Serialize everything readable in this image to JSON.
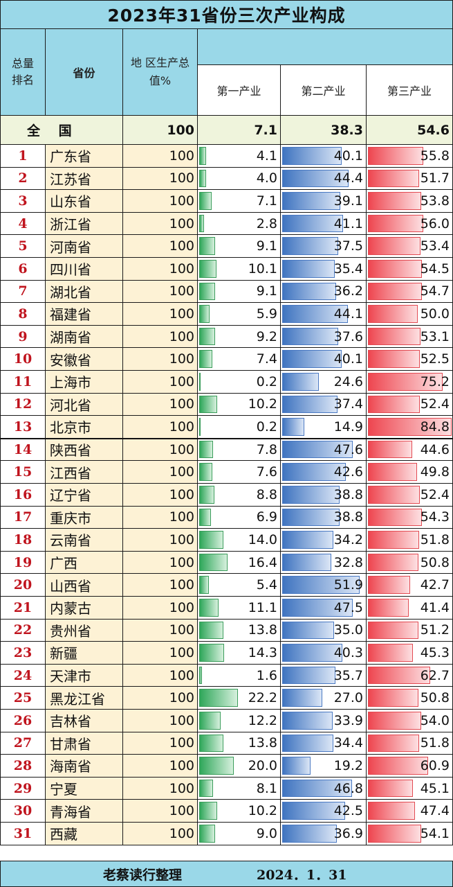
{
  "title": "2023年31省份三次产业构成",
  "headers": {
    "rank": "总量排名",
    "province": "省份",
    "gdp": "地 区生产总值%",
    "primary": "第一产业",
    "secondary": "第二产业",
    "tertiary": "第三产业"
  },
  "national": {
    "label": "全 国",
    "gdp": "100",
    "primary": "7.1",
    "secondary": "38.3",
    "tertiary": "54.6"
  },
  "chart_data": {
    "type": "table",
    "title": "2023年31省份三次产业构成",
    "columns": [
      "总量排名",
      "省份",
      "地 区生产总值%",
      "第一产业",
      "第二产业",
      "第三产业"
    ],
    "rows": [
      {
        "rank": "1",
        "province": "广东省",
        "gdp": "100",
        "primary": "4.1",
        "secondary": "40.1",
        "tertiary": "55.8"
      },
      {
        "rank": "2",
        "province": "江苏省",
        "gdp": "100",
        "primary": "4.0",
        "secondary": "44.4",
        "tertiary": "51.7"
      },
      {
        "rank": "3",
        "province": "山东省",
        "gdp": "100",
        "primary": "7.1",
        "secondary": "39.1",
        "tertiary": "53.8"
      },
      {
        "rank": "4",
        "province": "浙江省",
        "gdp": "100",
        "primary": "2.8",
        "secondary": "41.1",
        "tertiary": "56.0"
      },
      {
        "rank": "5",
        "province": "河南省",
        "gdp": "100",
        "primary": "9.1",
        "secondary": "37.5",
        "tertiary": "53.4"
      },
      {
        "rank": "6",
        "province": "四川省",
        "gdp": "100",
        "primary": "10.1",
        "secondary": "35.4",
        "tertiary": "54.5"
      },
      {
        "rank": "7",
        "province": "湖北省",
        "gdp": "100",
        "primary": "9.1",
        "secondary": "36.2",
        "tertiary": "54.7"
      },
      {
        "rank": "8",
        "province": "福建省",
        "gdp": "100",
        "primary": "5.9",
        "secondary": "44.1",
        "tertiary": "50.0"
      },
      {
        "rank": "9",
        "province": "湖南省",
        "gdp": "100",
        "primary": "9.2",
        "secondary": "37.6",
        "tertiary": "53.1"
      },
      {
        "rank": "10",
        "province": "安徽省",
        "gdp": "100",
        "primary": "7.4",
        "secondary": "40.1",
        "tertiary": "52.5"
      },
      {
        "rank": "11",
        "province": "上海市",
        "gdp": "100",
        "primary": "0.2",
        "secondary": "24.6",
        "tertiary": "75.2"
      },
      {
        "rank": "12",
        "province": "河北省",
        "gdp": "100",
        "primary": "10.2",
        "secondary": "37.4",
        "tertiary": "52.4"
      },
      {
        "rank": "13",
        "province": "北京市",
        "gdp": "100",
        "primary": "0.2",
        "secondary": "14.9",
        "tertiary": "84.8"
      },
      {
        "rank": "14",
        "province": "陕西省",
        "gdp": "100",
        "primary": "7.8",
        "secondary": "47.6",
        "tertiary": "44.6"
      },
      {
        "rank": "15",
        "province": "江西省",
        "gdp": "100",
        "primary": "7.6",
        "secondary": "42.6",
        "tertiary": "49.8"
      },
      {
        "rank": "16",
        "province": "辽宁省",
        "gdp": "100",
        "primary": "8.8",
        "secondary": "38.8",
        "tertiary": "52.4"
      },
      {
        "rank": "17",
        "province": "重庆市",
        "gdp": "100",
        "primary": "6.9",
        "secondary": "38.8",
        "tertiary": "54.3"
      },
      {
        "rank": "18",
        "province": "云南省",
        "gdp": "100",
        "primary": "14.0",
        "secondary": "34.2",
        "tertiary": "51.8"
      },
      {
        "rank": "19",
        "province": "广西",
        "gdp": "100",
        "primary": "16.4",
        "secondary": "32.8",
        "tertiary": "50.8"
      },
      {
        "rank": "20",
        "province": "山西省",
        "gdp": "100",
        "primary": "5.4",
        "secondary": "51.9",
        "tertiary": "42.7"
      },
      {
        "rank": "21",
        "province": "内蒙古",
        "gdp": "100",
        "primary": "11.1",
        "secondary": "47.5",
        "tertiary": "41.4"
      },
      {
        "rank": "22",
        "province": "贵州省",
        "gdp": "100",
        "primary": "13.8",
        "secondary": "35.0",
        "tertiary": "51.2"
      },
      {
        "rank": "23",
        "province": "新疆",
        "gdp": "100",
        "primary": "14.3",
        "secondary": "40.3",
        "tertiary": "45.3"
      },
      {
        "rank": "24",
        "province": "天津市",
        "gdp": "100",
        "primary": "1.6",
        "secondary": "35.7",
        "tertiary": "62.7"
      },
      {
        "rank": "25",
        "province": "黑龙江省",
        "gdp": "100",
        "primary": "22.2",
        "secondary": "27.0",
        "tertiary": "50.8"
      },
      {
        "rank": "26",
        "province": "吉林省",
        "gdp": "100",
        "primary": "12.2",
        "secondary": "33.9",
        "tertiary": "54.0"
      },
      {
        "rank": "27",
        "province": "甘肃省",
        "gdp": "100",
        "primary": "13.8",
        "secondary": "34.4",
        "tertiary": "51.8"
      },
      {
        "rank": "28",
        "province": "海南省",
        "gdp": "100",
        "primary": "20.0",
        "secondary": "19.2",
        "tertiary": "60.9"
      },
      {
        "rank": "29",
        "province": "宁夏",
        "gdp": "100",
        "primary": "8.1",
        "secondary": "46.8",
        "tertiary": "45.1"
      },
      {
        "rank": "30",
        "province": "青海省",
        "gdp": "100",
        "primary": "10.2",
        "secondary": "42.5",
        "tertiary": "47.4"
      },
      {
        "rank": "31",
        "province": "西藏",
        "gdp": "100",
        "primary": "9.0",
        "secondary": "36.9",
        "tertiary": "54.1"
      }
    ]
  },
  "footer": {
    "author": "老蔡读行整理",
    "date": "2024．1．31"
  },
  "colors": {
    "header_bg": "#9ad8e8",
    "province_bg": "#fdf2d5",
    "rank_text": "#c0141e",
    "primary_bar": "#2fa75a",
    "secondary_bar": "#3f74c0",
    "tertiary_bar": "#ee4650"
  }
}
